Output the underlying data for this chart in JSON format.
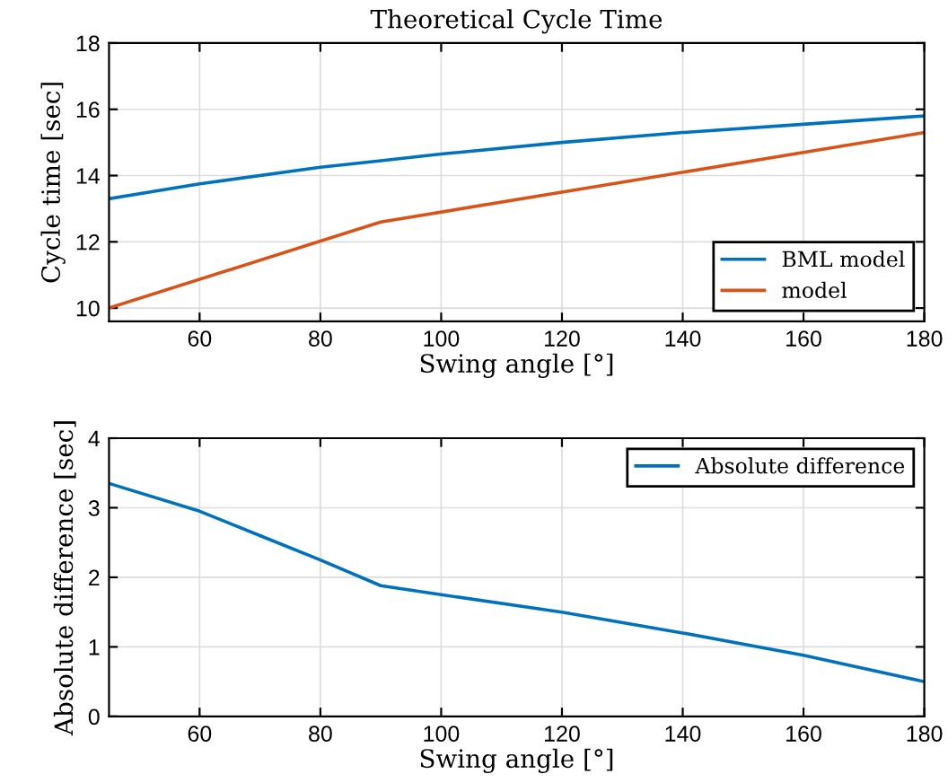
{
  "chart_data": [
    {
      "type": "line",
      "title": "Theoretical Cycle Time",
      "xlabel": "Swing angle [°]",
      "ylabel": "Cycle time [sec]",
      "xlim": [
        45,
        180
      ],
      "xticks": [
        60,
        80,
        100,
        120,
        140,
        160,
        180
      ],
      "ylim": [
        9.6,
        18
      ],
      "yticks": [
        10,
        12,
        14,
        16,
        18
      ],
      "grid": true,
      "legend": "bottom right",
      "series": [
        {
          "name": "BML model",
          "color": "#0072bd",
          "x": [
            45,
            60,
            80,
            90,
            100,
            120,
            140,
            160,
            180
          ],
          "values": [
            13.3,
            13.75,
            14.25,
            14.45,
            14.65,
            15.0,
            15.3,
            15.55,
            15.8
          ]
        },
        {
          "name": "model",
          "color": "#d95319",
          "x": [
            45,
            90,
            180
          ],
          "values": [
            10.0,
            12.6,
            15.3
          ]
        }
      ]
    },
    {
      "type": "line",
      "xlabel": "Swing angle [°]",
      "ylabel": "Absolute difference [sec]",
      "xlim": [
        45,
        180
      ],
      "xticks": [
        60,
        80,
        100,
        120,
        140,
        160,
        180
      ],
      "ylim": [
        0,
        4
      ],
      "yticks": [
        0,
        1,
        2,
        3,
        4
      ],
      "grid": true,
      "legend": "top right",
      "series": [
        {
          "name": "Absolute difference",
          "color": "#0072bd",
          "x": [
            45,
            60,
            70,
            80,
            90,
            100,
            120,
            140,
            160,
            180
          ],
          "values": [
            3.35,
            2.95,
            2.6,
            2.25,
            1.88,
            1.75,
            1.5,
            1.2,
            0.88,
            0.5
          ]
        }
      ]
    }
  ]
}
